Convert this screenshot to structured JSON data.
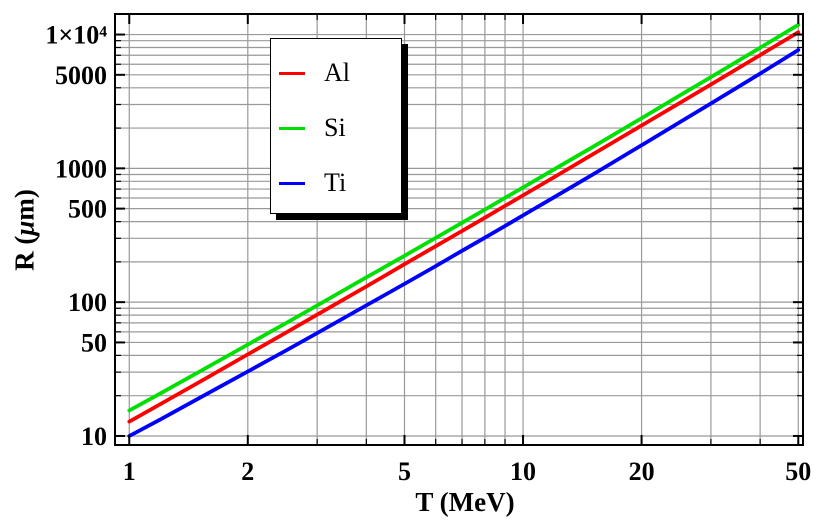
{
  "chart_data": {
    "type": "line",
    "title": "",
    "xlabel": "T (MeV)",
    "ylabel": "R (μm)",
    "x_scale": "log",
    "y_scale": "log",
    "x_range": [
      0.92,
      51.4
    ],
    "y_range": [
      8.56,
      14240
    ],
    "grid": true,
    "grid_color": "#999999",
    "frame_color": "#000000",
    "background": "#FFFFFF",
    "x": [
      1,
      1.2,
      1.5,
      2,
      2.5,
      3,
      4,
      5,
      6,
      7,
      8,
      9,
      10,
      12,
      15,
      20,
      25,
      30,
      40,
      50
    ],
    "series": [
      {
        "name": "Al",
        "color": "#FF0000",
        "values": [
          12.8,
          17.3,
          25.1,
          40.7,
          59.2,
          80.6,
          131,
          192,
          262,
          340,
          428,
          524,
          628,
          860,
          1270,
          2090,
          3080,
          4230,
          7020,
          10400
        ]
      },
      {
        "name": "Si",
        "color": "#00E000",
        "values": [
          15.5,
          20.8,
          30.0,
          48.2,
          69.7,
          94.4,
          153,
          222,
          302,
          392,
          492,
          601,
          719,
          983,
          1440,
          2370,
          3500,
          4810,
          7970,
          11800
        ]
      },
      {
        "name": "Ti",
        "color": "#0000FF",
        "values": [
          10.0,
          13.3,
          19.1,
          30.3,
          43.5,
          58.7,
          94.5,
          137,
          186,
          242,
          303,
          371,
          445,
          609,
          897,
          1490,
          2210,
          3050,
          5110,
          7660
        ]
      }
    ],
    "x_major_ticks": {
      "values": [
        1,
        2,
        5,
        10,
        20,
        50
      ],
      "labels": [
        "1",
        "2",
        "5",
        "10",
        "20",
        "50"
      ]
    },
    "y_major_ticks": {
      "values": [
        10,
        50,
        100,
        500,
        1000,
        5000,
        10000
      ],
      "labels": [
        "10",
        "50",
        "100",
        "500",
        "1000",
        "5000",
        "1×10⁴"
      ]
    },
    "x_gridlines": [
      1,
      2,
      3,
      4,
      5,
      6,
      7,
      8,
      9,
      10,
      20,
      30,
      40,
      50
    ],
    "y_gridlines": [
      10,
      20,
      30,
      40,
      50,
      60,
      70,
      80,
      90,
      100,
      200,
      300,
      400,
      500,
      600,
      700,
      800,
      900,
      1000,
      2000,
      3000,
      4000,
      5000,
      6000,
      7000,
      8000,
      9000,
      10000
    ],
    "legend": {
      "position": "upper-left-inside",
      "entries": [
        {
          "label": "Al",
          "color": "#FF0000"
        },
        {
          "label": "Si",
          "color": "#00E000"
        },
        {
          "label": "Ti",
          "color": "#0000FF"
        }
      ]
    }
  }
}
